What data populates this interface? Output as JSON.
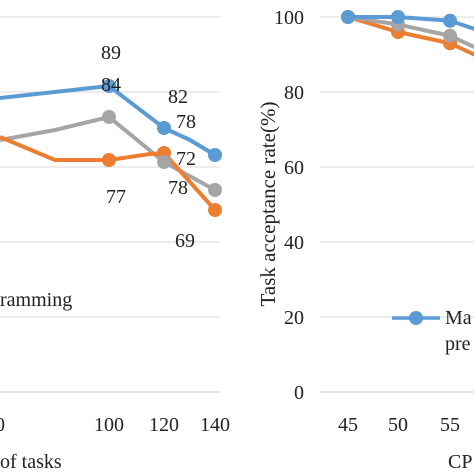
{
  "colors": {
    "blue": "#5B9BD5",
    "orange": "#ED7D31",
    "gray": "#A5A5A5",
    "axis": "#D9D9D9",
    "text": "#222222"
  },
  "chart_data": [
    {
      "type": "line",
      "partial": true,
      "categories": [
        "0",
        "100",
        "120",
        "140"
      ],
      "xlabel": "of tasks",
      "series": [
        {
          "color": "blue",
          "values": [
            null,
            89,
            82,
            78
          ]
        },
        {
          "color": "gray",
          "values": [
            null,
            84,
            78,
            72
          ]
        },
        {
          "color": "orange",
          "values": [
            null,
            77,
            78,
            69
          ]
        }
      ],
      "data_labels": [
        "89",
        "84",
        "82",
        "78",
        "78",
        "72",
        "77",
        "69"
      ],
      "legend_fragment": "ramming",
      "grid": true
    },
    {
      "type": "line",
      "partial": true,
      "categories": [
        "45",
        "50",
        "55"
      ],
      "ylabel": "Task acceptance rate(%)",
      "xlabel": "CP",
      "yticks": [
        "100",
        "80",
        "60",
        "40",
        "20",
        "0"
      ],
      "ylim": [
        0,
        100
      ],
      "series": [
        {
          "name": "Ma pre",
          "color": "blue",
          "values": [
            100,
            100,
            99
          ]
        },
        {
          "color": "gray",
          "values": [
            100,
            98,
            95
          ]
        },
        {
          "color": "orange",
          "values": [
            100,
            96,
            93
          ]
        }
      ],
      "legend_entries": [
        "Ma",
        "pre"
      ],
      "grid": true
    }
  ]
}
